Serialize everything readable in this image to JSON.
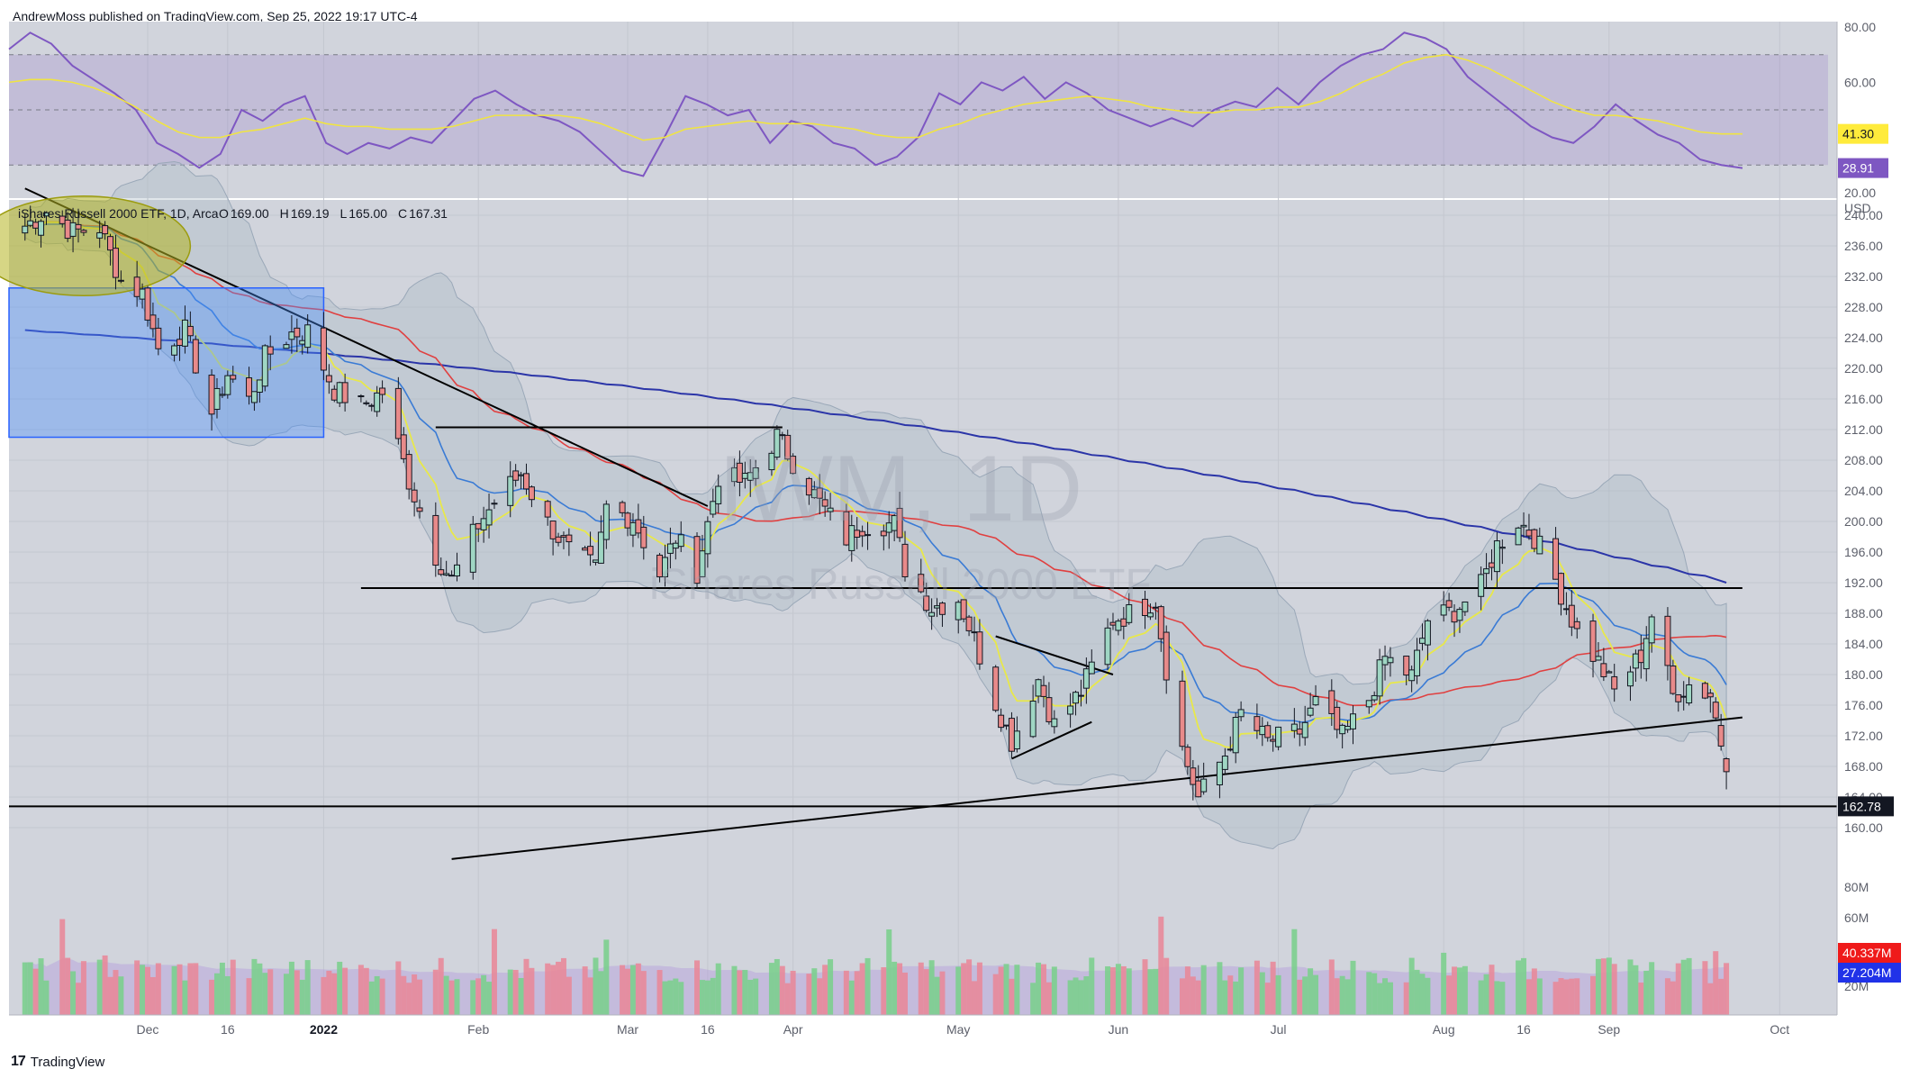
{
  "publisher_line": "AndrewMoss published on TradingView.com, Sep 25, 2022 19:17 UTC-4",
  "footer": {
    "logo_mark": "17",
    "brand": "TradingView"
  },
  "colors": {
    "background": "#d1d4dc",
    "up": "#26a69a",
    "down": "#ef5350",
    "rsi": "#7e57c2",
    "rsi_ma": "#f0e442",
    "sma200": "#2b35a8",
    "sma50": "#e04040",
    "ema20": "#3a7bd5",
    "ema8": "#e8e84a",
    "bollinger": "#9aa8b8",
    "volume_up": "#7ccf8e",
    "volume_down": "#e88a9a",
    "volume_ma": "#b39ddb"
  },
  "legend": {
    "symbol": "iShares Russell 2000 ETF, 1D, Arca",
    "o_label": "O",
    "o": "169.00",
    "h_label": "H",
    "h": "169.19",
    "l_label": "L",
    "l": "165.00",
    "c_label": "C",
    "c": "167.31"
  },
  "watermark": {
    "ticker": "IWM, 1D",
    "name": "iShares Russell 2000 ETF"
  },
  "chart_data": {
    "type": "candlestick",
    "currency": "USD",
    "price_axis": {
      "ticks": [
        160,
        164,
        168,
        172,
        176,
        180,
        184,
        188,
        192,
        196,
        200,
        204,
        208,
        212,
        216,
        220,
        224,
        228,
        232,
        236,
        240
      ],
      "range": [
        154,
        242
      ]
    },
    "rsi_axis": {
      "ticks": [
        20,
        60,
        80
      ],
      "range": [
        18,
        82
      ],
      "bands": [
        30,
        70
      ],
      "mid": 50
    },
    "volume_axis": {
      "ticks": [
        "20M",
        "60M",
        "80M"
      ]
    },
    "date_axis": [
      {
        "label": "Dec",
        "date": "2021-12-01",
        "major": false
      },
      {
        "label": "16",
        "date": "2021-12-16",
        "major": false
      },
      {
        "label": "2022",
        "date": "2022-01-03",
        "major": true
      },
      {
        "label": "Feb",
        "date": "2022-02-01",
        "major": false
      },
      {
        "label": "Mar",
        "date": "2022-03-01",
        "major": false
      },
      {
        "label": "16",
        "date": "2022-03-16",
        "major": false
      },
      {
        "label": "Apr",
        "date": "2022-04-01",
        "major": false
      },
      {
        "label": "May",
        "date": "2022-05-02",
        "major": false
      },
      {
        "label": "Jun",
        "date": "2022-06-01",
        "major": false
      },
      {
        "label": "Jul",
        "date": "2022-07-01",
        "major": false
      },
      {
        "label": "Aug",
        "date": "2022-08-01",
        "major": false
      },
      {
        "label": "16",
        "date": "2022-08-16",
        "major": false
      },
      {
        "label": "Sep",
        "date": "2022-09-01",
        "major": false
      },
      {
        "label": "Oct",
        "date": "2022-10-03",
        "major": false
      }
    ],
    "date_range": [
      "2021-11-05",
      "2022-10-07"
    ],
    "closes": [
      [
        "2021-11-08",
        238.6
      ],
      [
        "2021-11-12",
        240.5
      ],
      [
        "2021-11-17",
        237.8
      ],
      [
        "2021-11-22",
        238.4
      ],
      [
        "2021-11-26",
        231.5
      ],
      [
        "2021-11-30",
        229.8
      ],
      [
        "2021-12-03",
        222.6
      ],
      [
        "2021-12-08",
        224.9
      ],
      [
        "2021-12-13",
        214.2
      ],
      [
        "2021-12-16",
        219.3
      ],
      [
        "2021-12-20",
        215.8
      ],
      [
        "2021-12-23",
        221.4
      ],
      [
        "2021-12-28",
        224.6
      ],
      [
        "2021-12-31",
        224.8
      ],
      [
        "2022-01-05",
        217.2
      ],
      [
        "2022-01-10",
        215.1
      ],
      [
        "2022-01-14",
        216.9
      ],
      [
        "2022-01-19",
        205.4
      ],
      [
        "2022-01-24",
        195.6
      ],
      [
        "2022-01-27",
        192.4
      ],
      [
        "2022-02-01",
        199.6
      ],
      [
        "2022-02-04",
        202.5
      ],
      [
        "2022-02-09",
        206.3
      ],
      [
        "2022-02-14",
        199.8
      ],
      [
        "2022-02-18",
        196.2
      ],
      [
        "2022-02-23",
        193.8
      ],
      [
        "2022-02-25",
        201.8
      ],
      [
        "2022-03-02",
        200.4
      ],
      [
        "2022-03-07",
        193.1
      ],
      [
        "2022-03-10",
        197.9
      ],
      [
        "2022-03-14",
        193.5
      ],
      [
        "2022-03-18",
        205.9
      ],
      [
        "2022-03-23",
        205.1
      ],
      [
        "2022-03-29",
        211.1
      ],
      [
        "2022-04-01",
        207.8
      ],
      [
        "2022-04-06",
        202.4
      ],
      [
        "2022-04-11",
        197.8
      ],
      [
        "2022-04-14",
        199.6
      ],
      [
        "2022-04-20",
        199.7
      ],
      [
        "2022-04-22",
        193.9
      ],
      [
        "2022-04-27",
        188.8
      ],
      [
        "2022-05-02",
        189.9
      ],
      [
        "2022-05-05",
        184.6
      ],
      [
        "2022-05-09",
        176.4
      ],
      [
        "2022-05-12",
        171.3
      ],
      [
        "2022-05-17",
        179.4
      ],
      [
        "2022-05-20",
        173.4
      ],
      [
        "2022-05-25",
        177.8
      ],
      [
        "2022-05-31",
        187.2
      ],
      [
        "2022-06-03",
        187.9
      ],
      [
        "2022-06-08",
        189.8
      ],
      [
        "2022-06-10",
        180.8
      ],
      [
        "2022-06-13",
        170.3
      ],
      [
        "2022-06-16",
        163.9
      ],
      [
        "2022-06-21",
        169.6
      ],
      [
        "2022-06-24",
        174.9
      ],
      [
        "2022-06-29",
        171.2
      ],
      [
        "2022-07-05",
        172.5
      ],
      [
        "2022-07-08",
        176.2
      ],
      [
        "2022-07-13",
        171.8
      ],
      [
        "2022-07-18",
        176.8
      ],
      [
        "2022-07-21",
        182.2
      ],
      [
        "2022-07-26",
        179.8
      ],
      [
        "2022-07-29",
        187.2
      ],
      [
        "2022-08-03",
        188.3
      ],
      [
        "2022-08-08",
        191.5
      ],
      [
        "2022-08-11",
        196.9
      ],
      [
        "2022-08-15",
        200.1
      ],
      [
        "2022-08-18",
        198.0
      ],
      [
        "2022-08-22",
        192.4
      ],
      [
        "2022-08-26",
        185.5
      ],
      [
        "2022-08-30",
        181.6
      ],
      [
        "2022-09-02",
        177.8
      ],
      [
        "2022-09-07",
        182.6
      ],
      [
        "2022-09-09",
        187.8
      ],
      [
        "2022-09-13",
        177.3
      ],
      [
        "2022-09-16",
        178.7
      ],
      [
        "2022-09-20",
        177.4
      ],
      [
        "2022-09-22",
        171.2
      ],
      [
        "2022-09-23",
        167.31
      ]
    ],
    "indicators": [
      "SMA 200",
      "SMA 50",
      "EMA 20",
      "EMA 8",
      "Bollinger Bands",
      "RSI",
      "Volume",
      "Volume MA"
    ],
    "rsi": {
      "values": [
        72,
        78,
        74,
        66,
        61,
        56,
        50,
        38,
        34,
        29,
        34,
        50,
        46,
        52,
        55,
        38,
        34,
        38,
        36,
        40,
        38,
        46,
        54,
        57,
        52,
        48,
        46,
        42,
        35,
        28,
        26,
        40,
        55,
        52,
        48,
        50,
        38,
        46,
        44,
        38,
        36,
        30,
        33,
        40,
        56,
        52,
        60,
        57,
        62,
        54,
        60,
        56,
        50,
        47,
        44,
        47,
        44,
        50,
        53,
        51,
        58,
        52,
        60,
        66,
        70,
        72,
        78,
        76,
        72,
        62,
        56,
        50,
        44,
        40,
        38,
        44,
        52,
        46,
        41,
        38,
        32,
        30,
        28.91
      ],
      "current": "28.91",
      "ma_current": "41.30",
      "rsi_ma_values": [
        60,
        61,
        61,
        60,
        58,
        55,
        51,
        46,
        42,
        40,
        40,
        42,
        43,
        45,
        47,
        45,
        44,
        44,
        43,
        43,
        43,
        44,
        46,
        48,
        48,
        48,
        48,
        47,
        45,
        42,
        39,
        40,
        43,
        44,
        45,
        46,
        45,
        45,
        45,
        44,
        43,
        41,
        40,
        40,
        43,
        45,
        48,
        50,
        52,
        53,
        54,
        55,
        54,
        53,
        51,
        50,
        49,
        49,
        50,
        50,
        51,
        51,
        53,
        56,
        60,
        63,
        67,
        69,
        70,
        68,
        65,
        61,
        57,
        53,
        50,
        48,
        48,
        47,
        46,
        44,
        42,
        41.3,
        41.3
      ]
    },
    "volume": {
      "current_label": "40.337M",
      "ma_label": "27.204M",
      "up_color_last": "#ef5350"
    },
    "horizontal_levels": [
      {
        "price": 162.78,
        "label": "162.78"
      },
      {
        "price": 191.3,
        "label": ""
      },
      {
        "price": 212.3,
        "label": ""
      }
    ],
    "trendlines": [
      {
        "from": [
          "2021-11-08",
          243.5
        ],
        "to": [
          "2022-03-16",
          202.0
        ]
      },
      {
        "from": [
          "2022-01-27",
          155.9
        ],
        "to": [
          "2022-09-26",
          174.4
        ]
      },
      {
        "from": [
          "2022-05-09",
          185.0
        ],
        "to": [
          "2022-05-31",
          180.0
        ]
      },
      {
        "from": [
          "2022-05-12",
          169.0
        ],
        "to": [
          "2022-05-27",
          173.8
        ]
      }
    ],
    "boxes": [
      {
        "from": [
          "2021-11-05",
          230.5
        ],
        "to": [
          "2022-01-03",
          211.0
        ],
        "color": "#4a90ff"
      }
    ],
    "ellipses": [
      {
        "center": [
          "2021-11-19",
          236.0
        ],
        "rx_days": 20,
        "ry_price": 6.5,
        "color": "#b5b521"
      }
    ],
    "price_tags": [
      {
        "value": "162.78",
        "price": 162.78,
        "bg": "#131722",
        "fg": "#ffffff"
      }
    ]
  }
}
